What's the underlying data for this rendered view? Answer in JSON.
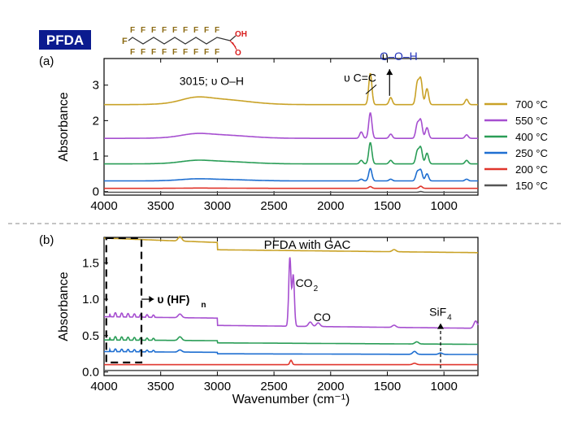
{
  "header": {
    "badge": "PFDA",
    "badge_color": "#0b1b8f"
  },
  "molecule": {
    "formula_text": "F",
    "acid_label": "OH",
    "carbonyl_label": "O",
    "fluorine_color": "#8b6a12",
    "acid_color": "#d81c1c"
  },
  "chart_data": [
    {
      "type": "line",
      "panel_label": "(a)",
      "title": "",
      "xlabel": "",
      "ylabel": "Absorbance",
      "xlim": [
        4000,
        700
      ],
      "x_reversed": true,
      "ylim": [
        -0.1,
        3.75
      ],
      "xticks": [
        4000,
        3500,
        3000,
        2500,
        2000,
        1500,
        1000
      ],
      "yticks": [
        0,
        1,
        2,
        3
      ],
      "legend_position": "right",
      "annotations": [
        {
          "text": "3015; υ O–H",
          "x": 3050,
          "y": 3.0
        },
        {
          "text": "υ C=C",
          "x": 1740,
          "y": 3.1,
          "arrow_to": [
            1690,
            2.75
          ]
        },
        {
          "text": "υ",
          "x": 1520,
          "y": 3.7
        },
        {
          "text": "C–O–H",
          "x": 1400,
          "y": 3.7,
          "color": "#2233bb",
          "arrow_from": [
            1480,
            2.7
          ]
        }
      ],
      "series": [
        {
          "name": "700 °C",
          "color": "#c9a227",
          "baseline": 2.45,
          "oh_height": 0.25,
          "peaks": [
            [
              1650,
              0.88
            ],
            [
              1470,
              0.2
            ],
            [
              1235,
              0.6
            ],
            [
              1205,
              0.7
            ],
            [
              1150,
              0.45
            ],
            [
              800,
              0.15
            ]
          ]
        },
        {
          "name": "550 °C",
          "color": "#a64fd0",
          "baseline": 1.5,
          "oh_height": 0.16,
          "peaks": [
            [
              1730,
              0.18
            ],
            [
              1650,
              0.72
            ],
            [
              1470,
              0.12
            ],
            [
              1235,
              0.4
            ],
            [
              1205,
              0.5
            ],
            [
              1150,
              0.3
            ],
            [
              800,
              0.1
            ]
          ]
        },
        {
          "name": "400 °C",
          "color": "#2a9d57",
          "baseline": 0.78,
          "oh_height": 0.12,
          "peaks": [
            [
              1730,
              0.1
            ],
            [
              1650,
              0.6
            ],
            [
              1470,
              0.1
            ],
            [
              1235,
              0.35
            ],
            [
              1205,
              0.45
            ],
            [
              1150,
              0.3
            ],
            [
              800,
              0.1
            ]
          ]
        },
        {
          "name": "250 °C",
          "color": "#1f6fd1",
          "baseline": 0.3,
          "oh_height": 0.07,
          "peaks": [
            [
              1730,
              0.05
            ],
            [
              1650,
              0.35
            ],
            [
              1470,
              0.05
            ],
            [
              1235,
              0.25
            ],
            [
              1205,
              0.3
            ],
            [
              1150,
              0.2
            ],
            [
              800,
              0.05
            ]
          ]
        },
        {
          "name": "200 °C",
          "color": "#e0362c",
          "baseline": 0.09,
          "oh_height": 0.01,
          "peaks": [
            [
              1650,
              0.05
            ],
            [
              1205,
              0.06
            ]
          ]
        },
        {
          "name": "150 °C",
          "color": "#555555",
          "baseline": -0.02,
          "oh_height": 0.0,
          "peaks": [
            [
              1205,
              0.02
            ]
          ]
        }
      ]
    },
    {
      "type": "line",
      "panel_label": "(b)",
      "title": "PFDA with GAC",
      "xlabel": "Wavenumber (cm⁻¹)",
      "ylabel": "Absorbance",
      "xlim": [
        4000,
        700
      ],
      "x_reversed": true,
      "ylim": [
        -0.05,
        1.85
      ],
      "xticks": [
        4000,
        3500,
        3000,
        2500,
        2000,
        1500,
        1000
      ],
      "yticks": [
        0.0,
        0.5,
        1.0,
        1.5
      ],
      "annotations": [
        {
          "text": "υ (HF)",
          "subscript": "n",
          "x": 3560,
          "y": 1.0
        },
        {
          "text": "CO",
          "subscript": "2",
          "x": 2310,
          "y": 1.17
        },
        {
          "text": "CO",
          "x": 2150,
          "y": 0.7
        },
        {
          "text": "SiF",
          "subscript": "4",
          "x": 1000,
          "y": 0.77,
          "dashed_arrow_from": [
            1030,
            0.05
          ]
        }
      ],
      "highlight_box": {
        "x": [
          3980,
          3670
        ],
        "y": [
          0.13,
          1.84
        ]
      },
      "series": [
        {
          "name": "700 °C",
          "color": "#c9a227",
          "start": 1.84,
          "pre3000": 1.78,
          "post3000": 1.68,
          "end": 1.64,
          "bumps": [
            [
              3330,
              0.06
            ],
            [
              1440,
              0.03
            ]
          ]
        },
        {
          "name": "550 °C",
          "color": "#a64fd0",
          "start": 0.76,
          "pre3000": 0.74,
          "post3000": 0.64,
          "end": 0.6,
          "bumps": [
            [
              3330,
              0.05
            ],
            [
              2360,
              0.94
            ],
            [
              2330,
              0.7
            ],
            [
              2180,
              0.06
            ],
            [
              2110,
              0.05
            ],
            [
              1440,
              0.03
            ],
            [
              720,
              0.1
            ]
          ],
          "hf_wiggle": 0.06
        },
        {
          "name": "400 °C",
          "color": "#2a9d57",
          "start": 0.44,
          "pre3000": 0.43,
          "post3000": 0.4,
          "end": 0.38,
          "bumps": [
            [
              3330,
              0.05
            ],
            [
              1240,
              0.03
            ]
          ],
          "hf_wiggle": 0.05
        },
        {
          "name": "250 °C",
          "color": "#1f6fd1",
          "start": 0.28,
          "pre3000": 0.27,
          "post3000": 0.25,
          "end": 0.24,
          "bumps": [
            [
              3330,
              0.03
            ],
            [
              1260,
              0.04
            ],
            [
              1030,
              0.02
            ]
          ],
          "hf_wiggle": 0.04
        },
        {
          "name": "200 °C",
          "color": "#e0362c",
          "start": 0.1,
          "pre3000": 0.1,
          "post3000": 0.1,
          "end": 0.1,
          "bumps": [
            [
              2350,
              0.06
            ],
            [
              1260,
              0.02
            ]
          ]
        },
        {
          "name": "150 °C",
          "color": "#555555",
          "start": 0.02,
          "pre3000": 0.02,
          "post3000": 0.02,
          "end": 0.02,
          "bumps": []
        }
      ]
    }
  ]
}
